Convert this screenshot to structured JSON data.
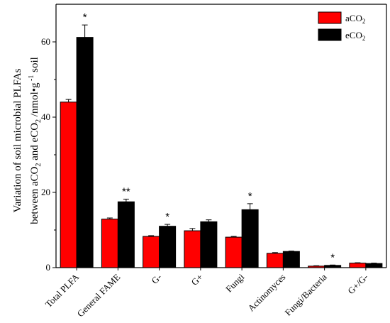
{
  "chart_data": {
    "type": "bar",
    "categories": [
      "Total PLFA",
      "General FAME",
      "G-",
      "G+",
      "Fungi",
      "Actinomyces",
      "Fungi/Bacteria",
      "G+/G-"
    ],
    "series": [
      {
        "name": "aCO2",
        "label_main": "aCO",
        "label_sub": "2",
        "color": "#ff0000",
        "values": [
          44.0,
          12.9,
          8.3,
          9.8,
          8.1,
          3.8,
          0.4,
          1.2
        ],
        "errors": [
          0.7,
          0.3,
          0.2,
          0.6,
          0.2,
          0.2,
          0.1,
          0.1
        ]
      },
      {
        "name": "eCO2",
        "label_main": "eCO",
        "label_sub": "2",
        "color": "#000000",
        "values": [
          61.2,
          17.5,
          11.0,
          12.2,
          15.4,
          4.3,
          0.6,
          1.1
        ],
        "errors": [
          3.3,
          0.7,
          0.5,
          0.5,
          1.6,
          0.1,
          0.1,
          0.1
        ]
      }
    ],
    "significance": [
      "*",
      "**",
      "*",
      "",
      "*",
      "",
      "*",
      ""
    ],
    "ylim": [
      0,
      70
    ],
    "yticks": [
      "0",
      "20",
      "40",
      "60"
    ],
    "ylabel": {
      "line1": "Variation of soil microbial PLFAs",
      "line2_a": "between aCO",
      "line2_sub1": "2",
      "line2_b": " and eCO",
      "line2_sub2": "2",
      "line2_c": " /nmol•g",
      "line2_sup": " -1",
      "line2_d": " soil"
    },
    "legend_position": "top-right",
    "grid": false
  }
}
